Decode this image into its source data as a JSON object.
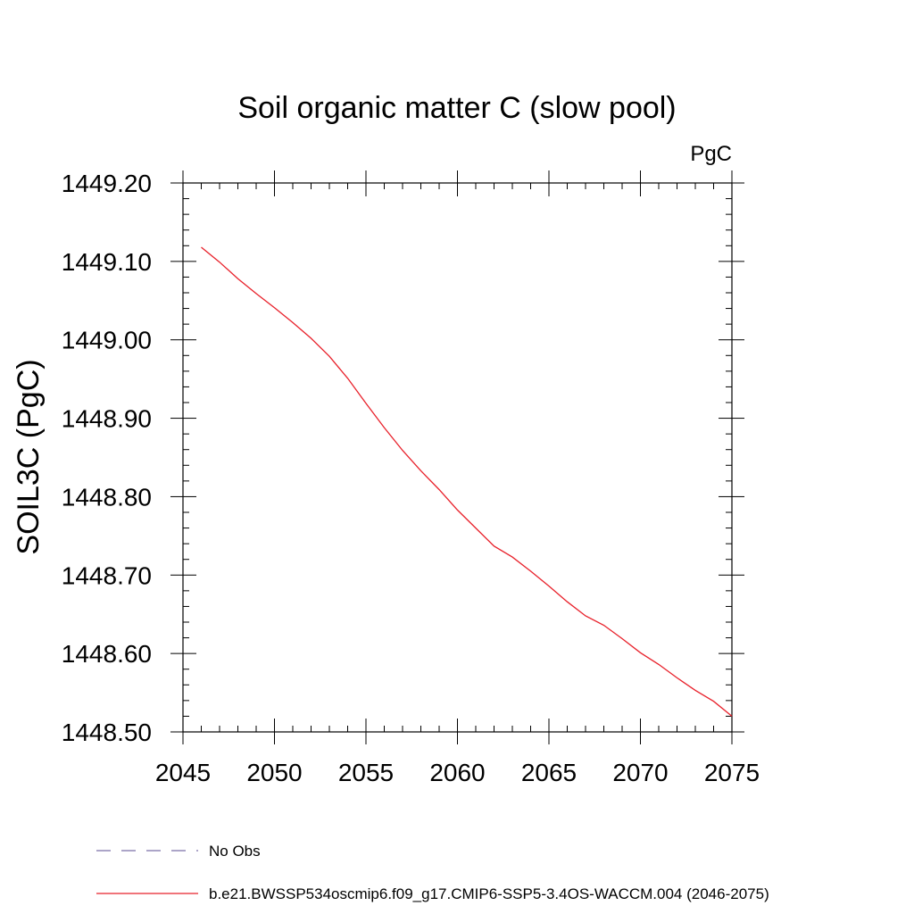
{
  "chart_data": {
    "type": "line",
    "title": "Soil organic matter C (slow pool)",
    "units_label": "PgC",
    "xlabel": "",
    "ylabel": "SOIL3C  (PgC)",
    "xlim": [
      2045,
      2075
    ],
    "ylim": [
      1448.5,
      1449.2
    ],
    "x_ticks": [
      "2045",
      "2050",
      "2055",
      "2060",
      "2065",
      "2070",
      "2075"
    ],
    "y_ticks": [
      "1448.50",
      "1448.60",
      "1448.70",
      "1448.80",
      "1448.90",
      "1449.00",
      "1449.10",
      "1449.20"
    ],
    "grid": false,
    "legend_placement": "bottom",
    "series": [
      {
        "name": "No Obs",
        "color": "#7a6fa8",
        "dash": "dashed",
        "x": [],
        "y": []
      },
      {
        "name": "b.e21.BWSSP534oscmip6.f09_g17.CMIP6-SSP5-3.4OS-WACCM.004 (2046-2075)",
        "color": "#e8202a",
        "dash": "solid",
        "x": [
          2046,
          2047,
          2048,
          2049,
          2050,
          2051,
          2052,
          2053,
          2054,
          2055,
          2056,
          2057,
          2058,
          2059,
          2060,
          2061,
          2062,
          2063,
          2064,
          2065,
          2066,
          2067,
          2068,
          2069,
          2070,
          2071,
          2072,
          2073,
          2074,
          2075
        ],
        "y": [
          1449.118,
          1449.099,
          1449.078,
          1449.059,
          1449.041,
          1449.022,
          1449.002,
          1448.979,
          1448.951,
          1448.919,
          1448.888,
          1448.859,
          1448.833,
          1448.809,
          1448.783,
          1448.76,
          1448.737,
          1448.723,
          1448.705,
          1448.686,
          1448.666,
          1448.648,
          1448.636,
          1448.619,
          1448.601,
          1448.586,
          1448.569,
          1448.553,
          1448.539,
          1448.52
        ]
      }
    ]
  }
}
